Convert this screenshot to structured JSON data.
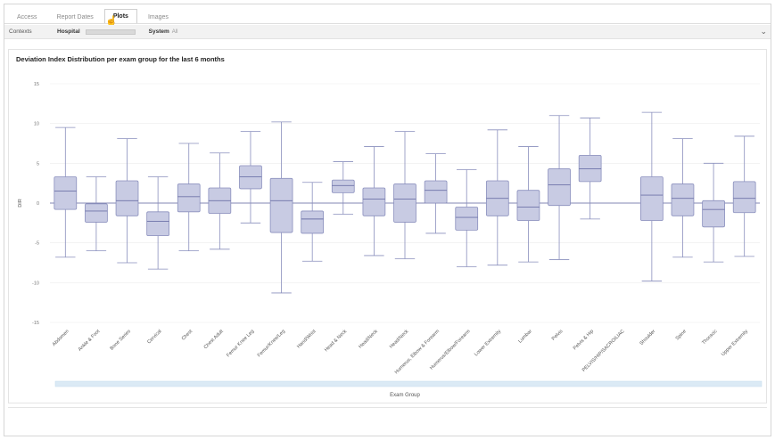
{
  "tabs": [
    {
      "label": "Access"
    },
    {
      "label": "Report Dates"
    },
    {
      "label": "Plots"
    },
    {
      "label": "Images"
    }
  ],
  "controls": {
    "contexts_label": "Contexts",
    "hospital_label": "Hospital",
    "system_label": "System",
    "system_value": "All"
  },
  "chart_data": {
    "type": "box",
    "title": "Deviation Index Distribution per exam group for the last 6 months",
    "xlabel": "Exam Group",
    "ylabel": "DIR",
    "ylim": [
      -15,
      15
    ],
    "yticks": [
      -15,
      -10,
      -5,
      0,
      5,
      10,
      15
    ],
    "box_color": "#c8cbe3",
    "box_stroke": "#8a8fbd",
    "categories": [
      "Abdomen",
      "Ankle & Foot",
      "Bone Series",
      "Cervical",
      "Chest",
      "Chest Adult",
      "Femur Knee Leg",
      "Femur/Knee/Leg",
      "Hand/Wrist",
      "Head & Neck",
      "Head/Neck",
      "Head/Neck",
      "Humerus, Elbow & Forearm",
      "Humerus/Elbow/Forearm",
      "Lower Extremity",
      "Lumbar",
      "Pelvis",
      "Pelvis & Hip",
      "PELVIS/HIP/SACROILIAC",
      "Shoulder",
      "Spine",
      "Thoracic",
      "Upper Extremity"
    ],
    "series": [
      {
        "category": "Abdomen",
        "min": -6.8,
        "q1": -0.8,
        "median": 1.5,
        "q3": 3.3,
        "max": 9.5
      },
      {
        "category": "Ankle & Foot",
        "min": -6.0,
        "q1": -2.4,
        "median": -1.0,
        "q3": -0.1,
        "max": 3.3
      },
      {
        "category": "Bone Series",
        "min": -7.5,
        "q1": -1.6,
        "median": 0.3,
        "q3": 2.8,
        "max": 8.1
      },
      {
        "category": "Cervical",
        "min": -8.3,
        "q1": -4.1,
        "median": -2.3,
        "q3": -1.1,
        "max": 3.3
      },
      {
        "category": "Chest",
        "min": -6.0,
        "q1": -1.1,
        "median": 0.8,
        "q3": 2.4,
        "max": 7.5
      },
      {
        "category": "Chest Adult",
        "min": -5.8,
        "q1": -1.3,
        "median": 0.3,
        "q3": 1.9,
        "max": 6.3
      },
      {
        "category": "Femur Knee Leg",
        "min": -2.5,
        "q1": 1.8,
        "median": 3.3,
        "q3": 4.7,
        "max": 9.0
      },
      {
        "category": "Femur/Knee/Leg",
        "min": -11.3,
        "q1": -3.7,
        "median": 0.3,
        "q3": 3.1,
        "max": 10.2
      },
      {
        "category": "Hand/Wrist",
        "min": -7.3,
        "q1": -3.8,
        "median": -2.0,
        "q3": -1.0,
        "max": 2.6
      },
      {
        "category": "Head & Neck",
        "min": -1.4,
        "q1": 1.3,
        "median": 2.2,
        "q3": 2.9,
        "max": 5.2
      },
      {
        "category": "Head/Neck",
        "min": -6.6,
        "q1": -1.6,
        "median": 0.5,
        "q3": 1.9,
        "max": 7.1
      },
      {
        "category": "Head/Neck",
        "min": -7.0,
        "q1": -2.4,
        "median": 0.5,
        "q3": 2.4,
        "max": 9.0
      },
      {
        "category": "Humerus, Elbow & Forearm",
        "min": -3.8,
        "q1": 0.0,
        "median": 1.6,
        "q3": 2.8,
        "max": 6.2
      },
      {
        "category": "Humerus/Elbow/Forearm",
        "min": -8.0,
        "q1": -3.4,
        "median": -1.8,
        "q3": -0.5,
        "max": 4.2
      },
      {
        "category": "Lower Extremity",
        "min": -7.8,
        "q1": -1.6,
        "median": 0.6,
        "q3": 2.8,
        "max": 9.2
      },
      {
        "category": "Lumbar",
        "min": -7.4,
        "q1": -2.2,
        "median": -0.5,
        "q3": 1.6,
        "max": 7.1
      },
      {
        "category": "Pelvis",
        "min": -7.1,
        "q1": -0.3,
        "median": 2.3,
        "q3": 4.3,
        "max": 11.0
      },
      {
        "category": "Pelvis & Hip",
        "min": -2.0,
        "q1": 2.7,
        "median": 4.3,
        "q3": 6.0,
        "max": 10.7
      },
      {
        "category": "PELVIS/HIP/SACROILIAC",
        "min": null,
        "q1": null,
        "median": null,
        "q3": null,
        "max": null
      },
      {
        "category": "Shoulder",
        "min": -9.8,
        "q1": -2.2,
        "median": 1.0,
        "q3": 3.3,
        "max": 11.4
      },
      {
        "category": "Spine",
        "min": -6.8,
        "q1": -1.6,
        "median": 0.6,
        "q3": 2.4,
        "max": 8.1
      },
      {
        "category": "Thoracic",
        "min": -7.4,
        "q1": -3.0,
        "median": -0.8,
        "q3": 0.3,
        "max": 5.0
      },
      {
        "category": "Upper Extremity",
        "min": -6.7,
        "q1": -1.2,
        "median": 0.6,
        "q3": 2.7,
        "max": 8.4
      }
    ]
  }
}
